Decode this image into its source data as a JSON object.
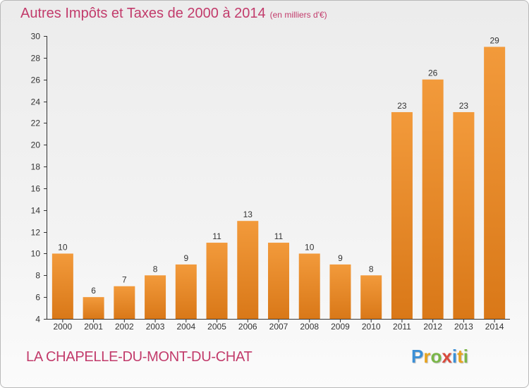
{
  "header": {
    "title": "Autres Impôts et Taxes de 2000 à 2014",
    "unit": "(en milliers d'€)"
  },
  "footer": {
    "commune": "LA CHAPELLE-DU-MONT-DU-CHAT",
    "logo_letters": [
      "P",
      "r",
      "o",
      "x",
      "i",
      "t",
      "i"
    ],
    "logo_colors": [
      "#3b8fd6",
      "#e8a31c",
      "#7ab648",
      "#d94a3d",
      "#3b8fd6",
      "#e8a31c",
      "#7ab648"
    ]
  },
  "chart_data": {
    "type": "bar",
    "title": "Autres Impôts et Taxes de 2000 à 2014",
    "subtitle": "(en milliers d'€)",
    "categories": [
      "2000",
      "2001",
      "2002",
      "2003",
      "2004",
      "2005",
      "2006",
      "2007",
      "2008",
      "2009",
      "2010",
      "2011",
      "2012",
      "2013",
      "2014"
    ],
    "values": [
      10,
      6,
      7,
      8,
      9,
      11,
      13,
      11,
      10,
      9,
      8,
      23,
      26,
      23,
      29
    ],
    "data_labels": [
      "10",
      "6",
      "7",
      "8",
      "9",
      "11",
      "13",
      "11",
      "10",
      "9",
      "8",
      "23",
      "26",
      "23",
      "29"
    ],
    "xlabel": "",
    "ylabel": "",
    "ylim": [
      4,
      30
    ],
    "yticks": [
      4,
      6,
      8,
      10,
      12,
      14,
      16,
      18,
      20,
      22,
      24,
      26,
      28,
      30
    ],
    "grid": false,
    "bar_color": "#f29a3b",
    "bar_color_dark": "#d97818"
  }
}
